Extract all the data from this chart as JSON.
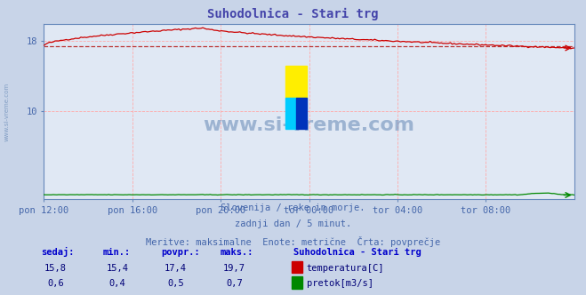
{
  "title": "Suhodolnica - Stari trg",
  "title_color": "#4444aa",
  "bg_color": "#c8d4e8",
  "plot_bg_color": "#e0e8f4",
  "grid_color": "#ffaaaa",
  "axis_color": "#6688bb",
  "tick_color": "#4466aa",
  "xlabels": [
    "pon 12:00",
    "pon 16:00",
    "pon 20:00",
    "tor 00:00",
    "tor 04:00",
    "tor 08:00"
  ],
  "ylim": [
    0,
    20
  ],
  "yticks": [
    10,
    18
  ],
  "temp_color": "#cc0000",
  "flow_color": "#008800",
  "avg_temp": 17.4,
  "avg_flow": 0.5,
  "max_temp": 19.7,
  "min_temp": 15.4,
  "max_flow": 0.7,
  "min_flow": 0.4,
  "cur_temp": 15.8,
  "cur_flow": 0.6,
  "watermark": "www.si-vreme.com",
  "watermark_color": "#7090bb",
  "footer_line1": "Slovenija / reke in morje.",
  "footer_line2": "zadnji dan / 5 minut.",
  "footer_line3": "Meritve: maksimalne  Enote: metrične  Črta: povprečje",
  "legend_title": "Suhodolnica - Stari trg",
  "legend_temp": "temperatura[C]",
  "legend_flow": "pretok[m3/s]",
  "label_sedaj": "sedaj:",
  "label_min": "min.:",
  "label_povpr": "povpr.:",
  "label_maks": "maks.:",
  "n_points": 288,
  "label_color": "#0000cc",
  "val_color": "#000077",
  "footer_color": "#4466aa"
}
